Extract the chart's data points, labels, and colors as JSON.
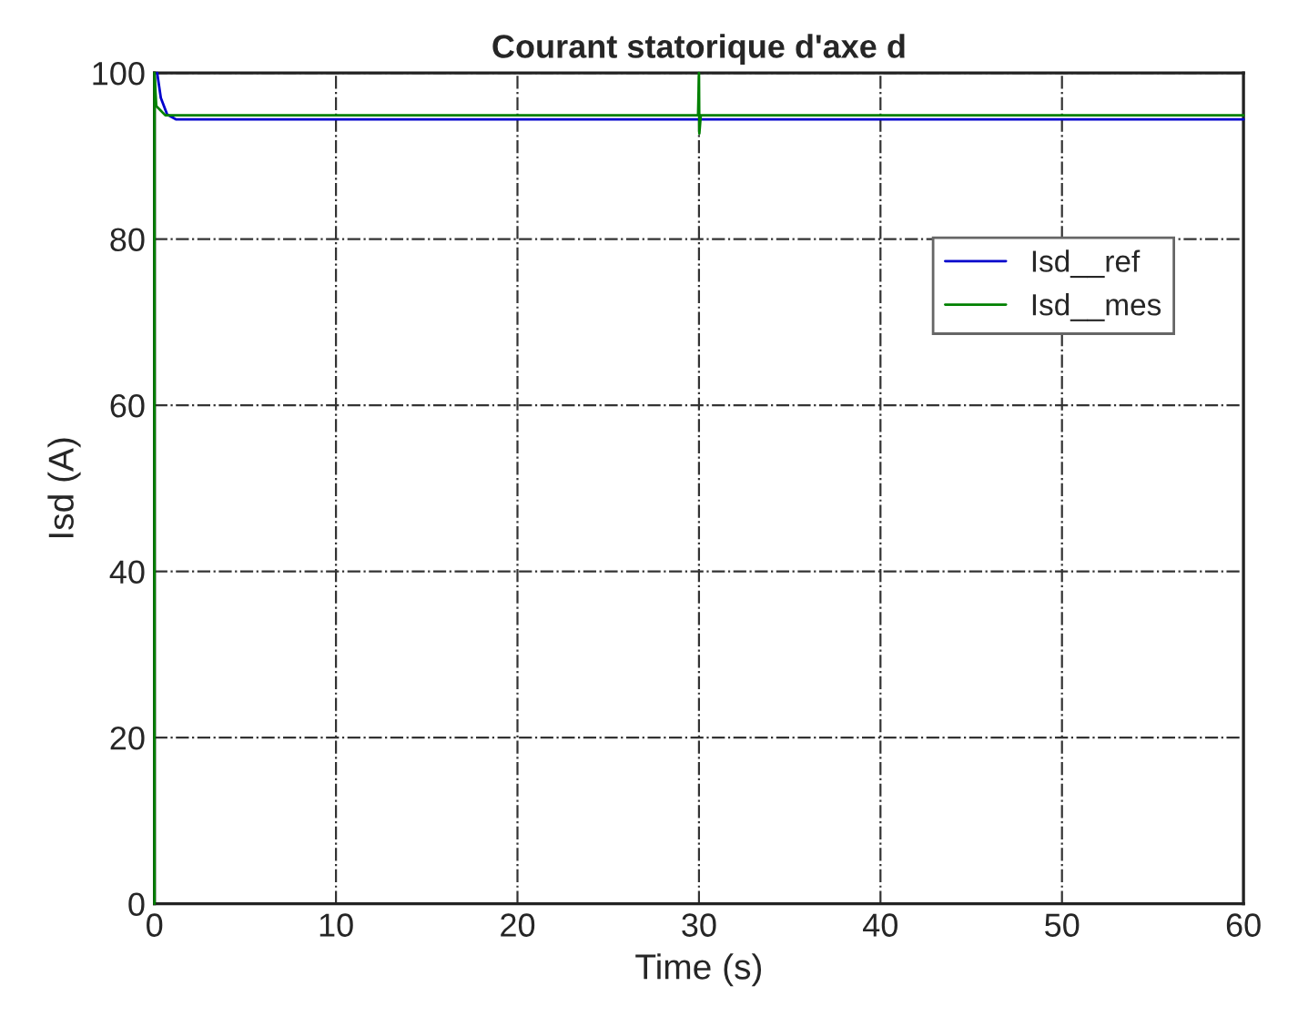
{
  "chart_data": {
    "type": "line",
    "title": "Courant statorique d'axe d",
    "xlabel": "Time (s)",
    "ylabel": "Isd (A)",
    "series": [
      {
        "name": "Isd__ref",
        "color": "#0000cc",
        "x": [
          0.15,
          0.35,
          0.7,
          1.2,
          30,
          60
        ],
        "values": [
          100,
          97,
          95,
          94.4,
          94.4,
          94.4
        ]
      },
      {
        "name": "Isd__mes",
        "color": "#008000",
        "x": [
          0,
          0,
          0.1,
          0.6,
          29.95,
          30,
          30.02,
          30.1,
          60
        ],
        "values": [
          0,
          100,
          96,
          94.9,
          94.9,
          100,
          92.7,
          94.9,
          94.9
        ]
      }
    ],
    "xlim": [
      0,
      60
    ],
    "ylim": [
      0,
      100
    ],
    "xticks": [
      0,
      10,
      20,
      30,
      40,
      50,
      60
    ],
    "yticks": [
      0,
      20,
      40,
      60,
      80,
      100
    ],
    "grid": true,
    "legend": "top right",
    "line_style": "solid",
    "marker": "none"
  }
}
